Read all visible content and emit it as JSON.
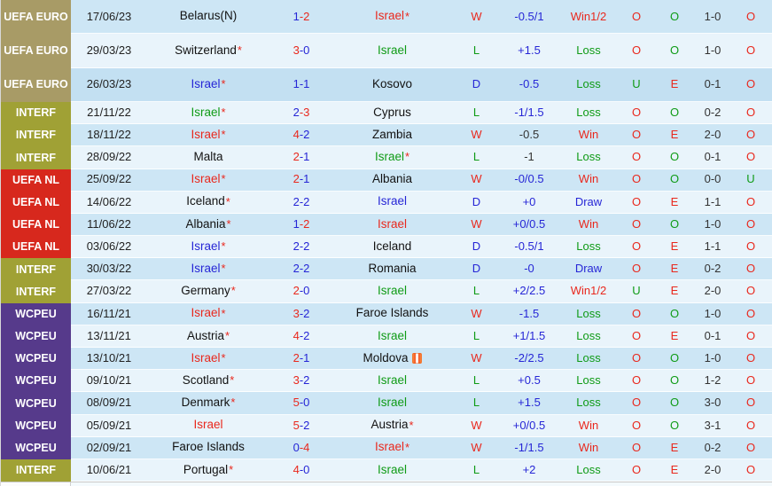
{
  "colors": {
    "red": "#e9281d",
    "green": "#0f9b16",
    "blue": "#2626d6",
    "black": "#121212",
    "gray": "#333333"
  },
  "badge_colors": {
    "euro": "#a89b66",
    "interf": "#a0a135",
    "nl": "#d7281d",
    "wcpeu": "#563a8b"
  },
  "shade_colors": {
    "dark": "#cde6f5",
    "light": "#e9f4fb",
    "highlight": "#c3e0f2"
  },
  "icons": {
    "moldova_flag": "orange-flag-icon"
  },
  "rows": [
    {
      "comp": "UEFA EURO",
      "badge": "euro",
      "date": "17/06/23",
      "home": {
        "name": "Belarus(N)",
        "color": "black",
        "star": false
      },
      "score": {
        "h": "1",
        "a": "2",
        "hc": "blue",
        "ac": "red"
      },
      "away": {
        "name": "Israel",
        "color": "red",
        "star": true
      },
      "wld": {
        "t": "W",
        "c": "red"
      },
      "hcap": {
        "t": "-0.5/1",
        "c": "blue"
      },
      "res": {
        "t": "Win1/2",
        "c": "red"
      },
      "ou": {
        "t": "O",
        "c": "red"
      },
      "oe": {
        "t": "O",
        "c": "green"
      },
      "ht": "1-0",
      "last": {
        "t": "O",
        "c": "red"
      },
      "shade": "dark",
      "flag": false
    },
    {
      "comp": "UEFA EURO",
      "badge": "euro",
      "date": "29/03/23",
      "home": {
        "name": "Switzerland",
        "color": "black",
        "star": true
      },
      "score": {
        "h": "3",
        "a": "0",
        "hc": "red",
        "ac": "blue"
      },
      "away": {
        "name": "Israel",
        "color": "green",
        "star": false
      },
      "wld": {
        "t": "L",
        "c": "green"
      },
      "hcap": {
        "t": "+1.5",
        "c": "blue"
      },
      "res": {
        "t": "Loss",
        "c": "green"
      },
      "ou": {
        "t": "O",
        "c": "red"
      },
      "oe": {
        "t": "O",
        "c": "green"
      },
      "ht": "1-0",
      "last": {
        "t": "O",
        "c": "red"
      },
      "shade": "light",
      "flag": false
    },
    {
      "comp": "UEFA EURO",
      "badge": "euro",
      "date": "26/03/23",
      "home": {
        "name": "Israel",
        "color": "blue",
        "star": true
      },
      "score": {
        "h": "1",
        "a": "1",
        "hc": "blue",
        "ac": "blue"
      },
      "away": {
        "name": "Kosovo",
        "color": "black",
        "star": false
      },
      "wld": {
        "t": "D",
        "c": "blue"
      },
      "hcap": {
        "t": "-0.5",
        "c": "blue"
      },
      "res": {
        "t": "Loss",
        "c": "green"
      },
      "ou": {
        "t": "U",
        "c": "green"
      },
      "oe": {
        "t": "E",
        "c": "red"
      },
      "ht": "0-1",
      "last": {
        "t": "O",
        "c": "red"
      },
      "shade": "highlight",
      "flag": false
    },
    {
      "comp": "INTERF",
      "badge": "interf",
      "date": "21/11/22",
      "home": {
        "name": "Israel",
        "color": "green",
        "star": true
      },
      "score": {
        "h": "2",
        "a": "3",
        "hc": "blue",
        "ac": "red"
      },
      "away": {
        "name": "Cyprus",
        "color": "black",
        "star": false
      },
      "wld": {
        "t": "L",
        "c": "green"
      },
      "hcap": {
        "t": "-1/1.5",
        "c": "blue"
      },
      "res": {
        "t": "Loss",
        "c": "green"
      },
      "ou": {
        "t": "O",
        "c": "red"
      },
      "oe": {
        "t": "O",
        "c": "green"
      },
      "ht": "0-2",
      "last": {
        "t": "O",
        "c": "red"
      },
      "shade": "light",
      "flag": false
    },
    {
      "comp": "INTERF",
      "badge": "interf",
      "date": "18/11/22",
      "home": {
        "name": "Israel",
        "color": "red",
        "star": true
      },
      "score": {
        "h": "4",
        "a": "2",
        "hc": "red",
        "ac": "blue"
      },
      "away": {
        "name": "Zambia",
        "color": "black",
        "star": false
      },
      "wld": {
        "t": "W",
        "c": "red"
      },
      "hcap": {
        "t": "-0.5",
        "c": "gray"
      },
      "res": {
        "t": "Win",
        "c": "red"
      },
      "ou": {
        "t": "O",
        "c": "red"
      },
      "oe": {
        "t": "E",
        "c": "red"
      },
      "ht": "2-0",
      "last": {
        "t": "O",
        "c": "red"
      },
      "shade": "dark",
      "flag": false
    },
    {
      "comp": "INTERF",
      "badge": "interf",
      "date": "28/09/22",
      "home": {
        "name": "Malta",
        "color": "black",
        "star": false
      },
      "score": {
        "h": "2",
        "a": "1",
        "hc": "red",
        "ac": "blue"
      },
      "away": {
        "name": "Israel",
        "color": "green",
        "star": true
      },
      "wld": {
        "t": "L",
        "c": "green"
      },
      "hcap": {
        "t": "-1",
        "c": "gray"
      },
      "res": {
        "t": "Loss",
        "c": "green"
      },
      "ou": {
        "t": "O",
        "c": "red"
      },
      "oe": {
        "t": "O",
        "c": "green"
      },
      "ht": "0-1",
      "last": {
        "t": "O",
        "c": "red"
      },
      "shade": "light",
      "flag": false
    },
    {
      "comp": "UEFA NL",
      "badge": "nl",
      "date": "25/09/22",
      "home": {
        "name": "Israel",
        "color": "red",
        "star": true
      },
      "score": {
        "h": "2",
        "a": "1",
        "hc": "red",
        "ac": "blue"
      },
      "away": {
        "name": "Albania",
        "color": "black",
        "star": false
      },
      "wld": {
        "t": "W",
        "c": "red"
      },
      "hcap": {
        "t": "-0/0.5",
        "c": "blue"
      },
      "res": {
        "t": "Win",
        "c": "red"
      },
      "ou": {
        "t": "O",
        "c": "red"
      },
      "oe": {
        "t": "O",
        "c": "green"
      },
      "ht": "0-0",
      "last": {
        "t": "U",
        "c": "green"
      },
      "shade": "dark",
      "flag": false
    },
    {
      "comp": "UEFA NL",
      "badge": "nl",
      "date": "14/06/22",
      "home": {
        "name": "Iceland",
        "color": "black",
        "star": true
      },
      "score": {
        "h": "2",
        "a": "2",
        "hc": "blue",
        "ac": "blue"
      },
      "away": {
        "name": "Israel",
        "color": "blue",
        "star": false
      },
      "wld": {
        "t": "D",
        "c": "blue"
      },
      "hcap": {
        "t": "+0",
        "c": "blue"
      },
      "res": {
        "t": "Draw",
        "c": "blue"
      },
      "ou": {
        "t": "O",
        "c": "red"
      },
      "oe": {
        "t": "E",
        "c": "red"
      },
      "ht": "1-1",
      "last": {
        "t": "O",
        "c": "red"
      },
      "shade": "light",
      "flag": false
    },
    {
      "comp": "UEFA NL",
      "badge": "nl",
      "date": "11/06/22",
      "home": {
        "name": "Albania",
        "color": "black",
        "star": true
      },
      "score": {
        "h": "1",
        "a": "2",
        "hc": "blue",
        "ac": "red"
      },
      "away": {
        "name": "Israel",
        "color": "red",
        "star": false
      },
      "wld": {
        "t": "W",
        "c": "red"
      },
      "hcap": {
        "t": "+0/0.5",
        "c": "blue"
      },
      "res": {
        "t": "Win",
        "c": "red"
      },
      "ou": {
        "t": "O",
        "c": "red"
      },
      "oe": {
        "t": "O",
        "c": "green"
      },
      "ht": "1-0",
      "last": {
        "t": "O",
        "c": "red"
      },
      "shade": "dark",
      "flag": false
    },
    {
      "comp": "UEFA NL",
      "badge": "nl",
      "date": "03/06/22",
      "home": {
        "name": "Israel",
        "color": "blue",
        "star": true
      },
      "score": {
        "h": "2",
        "a": "2",
        "hc": "blue",
        "ac": "blue"
      },
      "away": {
        "name": "Iceland",
        "color": "black",
        "star": false
      },
      "wld": {
        "t": "D",
        "c": "blue"
      },
      "hcap": {
        "t": "-0.5/1",
        "c": "blue"
      },
      "res": {
        "t": "Loss",
        "c": "green"
      },
      "ou": {
        "t": "O",
        "c": "red"
      },
      "oe": {
        "t": "E",
        "c": "red"
      },
      "ht": "1-1",
      "last": {
        "t": "O",
        "c": "red"
      },
      "shade": "light",
      "flag": false
    },
    {
      "comp": "INTERF",
      "badge": "interf",
      "date": "30/03/22",
      "home": {
        "name": "Israel",
        "color": "blue",
        "star": true
      },
      "score": {
        "h": "2",
        "a": "2",
        "hc": "blue",
        "ac": "blue"
      },
      "away": {
        "name": "Romania",
        "color": "black",
        "star": false
      },
      "wld": {
        "t": "D",
        "c": "blue"
      },
      "hcap": {
        "t": "-0",
        "c": "blue"
      },
      "res": {
        "t": "Draw",
        "c": "blue"
      },
      "ou": {
        "t": "O",
        "c": "red"
      },
      "oe": {
        "t": "E",
        "c": "red"
      },
      "ht": "0-2",
      "last": {
        "t": "O",
        "c": "red"
      },
      "shade": "dark",
      "flag": false
    },
    {
      "comp": "INTERF",
      "badge": "interf",
      "date": "27/03/22",
      "home": {
        "name": "Germany",
        "color": "black",
        "star": true
      },
      "score": {
        "h": "2",
        "a": "0",
        "hc": "red",
        "ac": "blue"
      },
      "away": {
        "name": "Israel",
        "color": "green",
        "star": false
      },
      "wld": {
        "t": "L",
        "c": "green"
      },
      "hcap": {
        "t": "+2/2.5",
        "c": "blue"
      },
      "res": {
        "t": "Win1/2",
        "c": "red"
      },
      "ou": {
        "t": "U",
        "c": "green"
      },
      "oe": {
        "t": "E",
        "c": "red"
      },
      "ht": "2-0",
      "last": {
        "t": "O",
        "c": "red"
      },
      "shade": "light",
      "flag": false
    },
    {
      "comp": "WCPEU",
      "badge": "wcpeu",
      "date": "16/11/21",
      "home": {
        "name": "Israel",
        "color": "red",
        "star": true
      },
      "score": {
        "h": "3",
        "a": "2",
        "hc": "red",
        "ac": "blue"
      },
      "away": {
        "name": "Faroe Islands",
        "color": "black",
        "star": false
      },
      "wld": {
        "t": "W",
        "c": "red"
      },
      "hcap": {
        "t": "-1.5",
        "c": "blue"
      },
      "res": {
        "t": "Loss",
        "c": "green"
      },
      "ou": {
        "t": "O",
        "c": "red"
      },
      "oe": {
        "t": "O",
        "c": "green"
      },
      "ht": "1-0",
      "last": {
        "t": "O",
        "c": "red"
      },
      "shade": "dark",
      "flag": false
    },
    {
      "comp": "WCPEU",
      "badge": "wcpeu",
      "date": "13/11/21",
      "home": {
        "name": "Austria",
        "color": "black",
        "star": true
      },
      "score": {
        "h": "4",
        "a": "2",
        "hc": "red",
        "ac": "blue"
      },
      "away": {
        "name": "Israel",
        "color": "green",
        "star": false
      },
      "wld": {
        "t": "L",
        "c": "green"
      },
      "hcap": {
        "t": "+1/1.5",
        "c": "blue"
      },
      "res": {
        "t": "Loss",
        "c": "green"
      },
      "ou": {
        "t": "O",
        "c": "red"
      },
      "oe": {
        "t": "E",
        "c": "red"
      },
      "ht": "0-1",
      "last": {
        "t": "O",
        "c": "red"
      },
      "shade": "light",
      "flag": false
    },
    {
      "comp": "WCPEU",
      "badge": "wcpeu",
      "date": "13/10/21",
      "home": {
        "name": "Israel",
        "color": "red",
        "star": true
      },
      "score": {
        "h": "2",
        "a": "1",
        "hc": "red",
        "ac": "blue"
      },
      "away": {
        "name": "Moldova",
        "color": "black",
        "star": false
      },
      "wld": {
        "t": "W",
        "c": "red"
      },
      "hcap": {
        "t": "-2/2.5",
        "c": "blue"
      },
      "res": {
        "t": "Loss",
        "c": "green"
      },
      "ou": {
        "t": "O",
        "c": "red"
      },
      "oe": {
        "t": "O",
        "c": "green"
      },
      "ht": "1-0",
      "last": {
        "t": "O",
        "c": "red"
      },
      "shade": "dark",
      "flag": true
    },
    {
      "comp": "WCPEU",
      "badge": "wcpeu",
      "date": "09/10/21",
      "home": {
        "name": "Scotland",
        "color": "black",
        "star": true
      },
      "score": {
        "h": "3",
        "a": "2",
        "hc": "red",
        "ac": "blue"
      },
      "away": {
        "name": "Israel",
        "color": "green",
        "star": false
      },
      "wld": {
        "t": "L",
        "c": "green"
      },
      "hcap": {
        "t": "+0.5",
        "c": "blue"
      },
      "res": {
        "t": "Loss",
        "c": "green"
      },
      "ou": {
        "t": "O",
        "c": "red"
      },
      "oe": {
        "t": "O",
        "c": "green"
      },
      "ht": "1-2",
      "last": {
        "t": "O",
        "c": "red"
      },
      "shade": "light",
      "flag": false
    },
    {
      "comp": "WCPEU",
      "badge": "wcpeu",
      "date": "08/09/21",
      "home": {
        "name": "Denmark",
        "color": "black",
        "star": true
      },
      "score": {
        "h": "5",
        "a": "0",
        "hc": "red",
        "ac": "blue"
      },
      "away": {
        "name": "Israel",
        "color": "green",
        "star": false
      },
      "wld": {
        "t": "L",
        "c": "green"
      },
      "hcap": {
        "t": "+1.5",
        "c": "blue"
      },
      "res": {
        "t": "Loss",
        "c": "green"
      },
      "ou": {
        "t": "O",
        "c": "red"
      },
      "oe": {
        "t": "O",
        "c": "green"
      },
      "ht": "3-0",
      "last": {
        "t": "O",
        "c": "red"
      },
      "shade": "dark",
      "flag": false
    },
    {
      "comp": "WCPEU",
      "badge": "wcpeu",
      "date": "05/09/21",
      "home": {
        "name": "Israel",
        "color": "red",
        "star": false
      },
      "score": {
        "h": "5",
        "a": "2",
        "hc": "red",
        "ac": "blue"
      },
      "away": {
        "name": "Austria",
        "color": "black",
        "star": true
      },
      "wld": {
        "t": "W",
        "c": "red"
      },
      "hcap": {
        "t": "+0/0.5",
        "c": "blue"
      },
      "res": {
        "t": "Win",
        "c": "red"
      },
      "ou": {
        "t": "O",
        "c": "red"
      },
      "oe": {
        "t": "O",
        "c": "green"
      },
      "ht": "3-1",
      "last": {
        "t": "O",
        "c": "red"
      },
      "shade": "light",
      "flag": false
    },
    {
      "comp": "WCPEU",
      "badge": "wcpeu",
      "date": "02/09/21",
      "home": {
        "name": "Faroe Islands",
        "color": "black",
        "star": false
      },
      "score": {
        "h": "0",
        "a": "4",
        "hc": "blue",
        "ac": "red"
      },
      "away": {
        "name": "Israel",
        "color": "red",
        "star": true
      },
      "wld": {
        "t": "W",
        "c": "red"
      },
      "hcap": {
        "t": "-1/1.5",
        "c": "blue"
      },
      "res": {
        "t": "Win",
        "c": "red"
      },
      "ou": {
        "t": "O",
        "c": "red"
      },
      "oe": {
        "t": "E",
        "c": "red"
      },
      "ht": "0-2",
      "last": {
        "t": "O",
        "c": "red"
      },
      "shade": "dark",
      "flag": false
    },
    {
      "comp": "INTERF",
      "badge": "interf",
      "date": "10/06/21",
      "home": {
        "name": "Portugal",
        "color": "black",
        "star": true
      },
      "score": {
        "h": "4",
        "a": "0",
        "hc": "red",
        "ac": "blue"
      },
      "away": {
        "name": "Israel",
        "color": "green",
        "star": false
      },
      "wld": {
        "t": "L",
        "c": "green"
      },
      "hcap": {
        "t": "+2",
        "c": "blue"
      },
      "res": {
        "t": "Loss",
        "c": "green"
      },
      "ou": {
        "t": "O",
        "c": "red"
      },
      "oe": {
        "t": "E",
        "c": "red"
      },
      "ht": "2-0",
      "last": {
        "t": "O",
        "c": "red"
      },
      "shade": "light",
      "flag": false
    }
  ]
}
